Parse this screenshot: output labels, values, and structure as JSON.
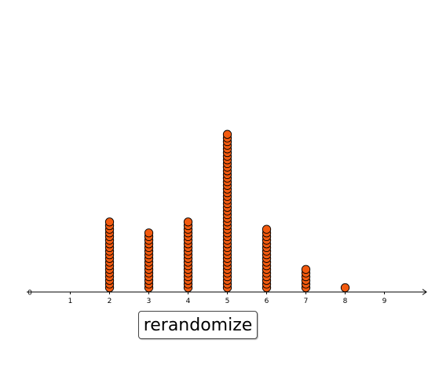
{
  "controls": {
    "rerandomize_label": "rerandomize"
  },
  "chart_data": {
    "type": "dot-plot",
    "title": "",
    "xlabel": "",
    "ylabel": "",
    "origin_label": "0",
    "x_ticks": [
      "1",
      "2",
      "3",
      "4",
      "5",
      "6",
      "7",
      "8",
      "9"
    ],
    "xlim": [
      0,
      10
    ],
    "grid": false,
    "dot_color": "#f25a0f",
    "dot_outline_color": "#000000",
    "counts": [
      {
        "x": 2,
        "count": 19
      },
      {
        "x": 3,
        "count": 16
      },
      {
        "x": 4,
        "count": 19
      },
      {
        "x": 5,
        "count": 43
      },
      {
        "x": 6,
        "count": 17
      },
      {
        "x": 7,
        "count": 6
      },
      {
        "x": 8,
        "count": 1
      }
    ]
  }
}
